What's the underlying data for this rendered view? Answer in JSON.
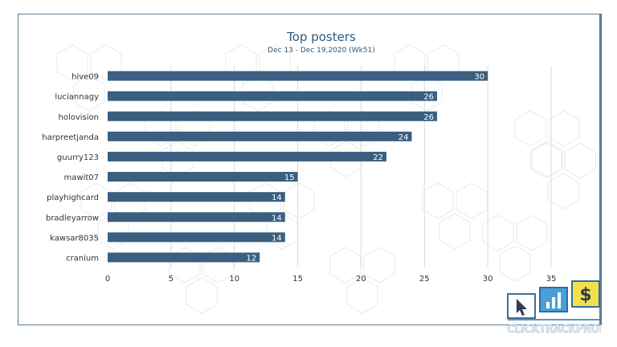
{
  "chart_data": {
    "type": "bar",
    "orientation": "horizontal",
    "title": "Top posters",
    "subtitle": "Dec 13 - Dec 19,2020 (Wk51)",
    "categories": [
      "hive09",
      "luciannagy",
      "holovision",
      "harpreetjanda",
      "guurry123",
      "mawit07",
      "playhighcard",
      "bradleyarrow",
      "kawsar8035",
      "cranium"
    ],
    "values": [
      30,
      26,
      26,
      24,
      22,
      15,
      14,
      14,
      14,
      12
    ],
    "xlim": [
      0,
      35
    ],
    "xticks": [
      0,
      5,
      10,
      15,
      20,
      25,
      30,
      35
    ],
    "grid": true,
    "data_labels": true,
    "colors": {
      "bar": "#3a5f80",
      "title": "#2e5a7a"
    }
  },
  "logo": {
    "text": "CLICKTRACKPROFIT",
    "icons": [
      "cursor-icon",
      "bar-chart-icon",
      "dollar-icon"
    ]
  }
}
